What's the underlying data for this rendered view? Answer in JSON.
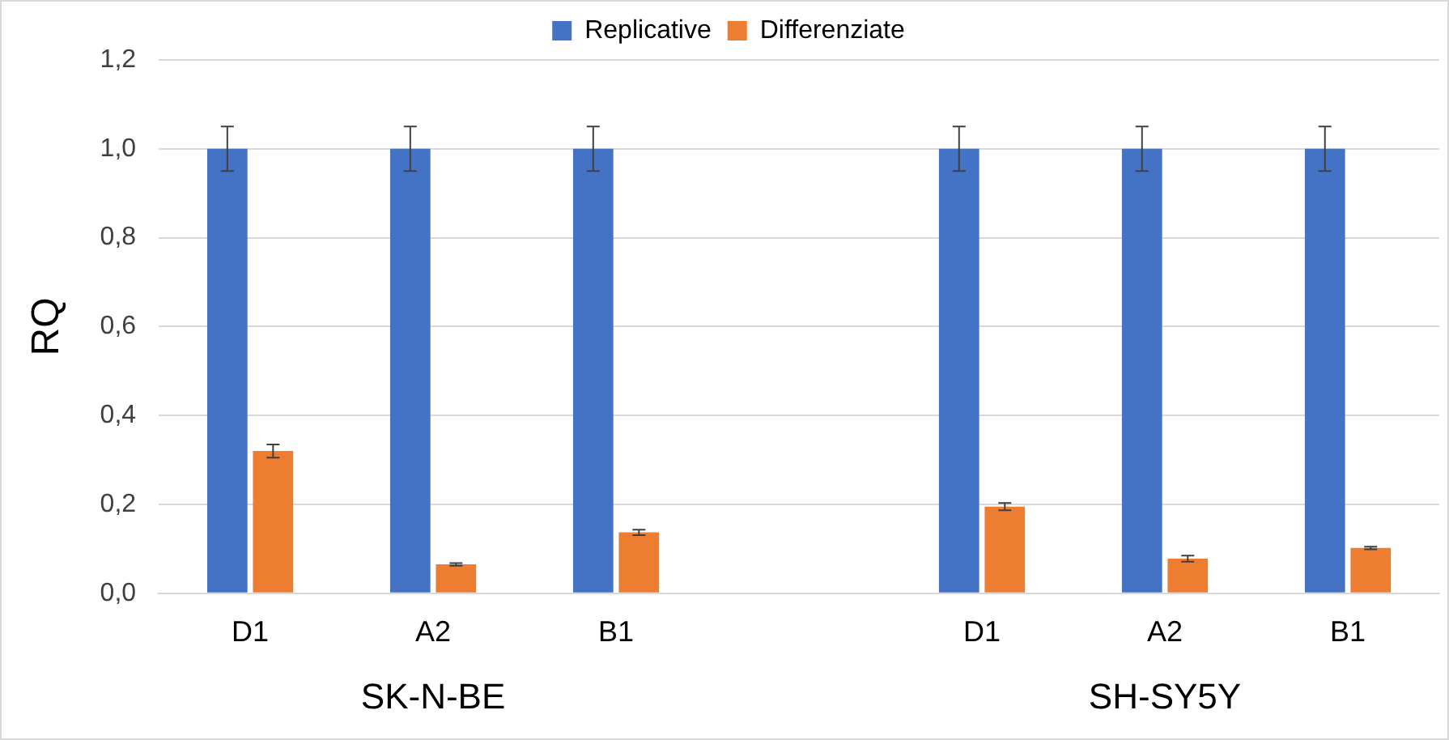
{
  "chart_data": {
    "type": "bar",
    "ylabel": "RQ",
    "categories": [
      "D1",
      "A2",
      "B1",
      null,
      "D1",
      "A2",
      "B1"
    ],
    "series": [
      {
        "name": "Replicative",
        "color": "#4472c4",
        "values": [
          1.0,
          1.0,
          1.0,
          null,
          1.0,
          1.0,
          1.0
        ],
        "errors": [
          0.05,
          0.05,
          0.05,
          null,
          0.05,
          0.05,
          0.05
        ]
      },
      {
        "name": "Differenziate",
        "color": "#ed7d31",
        "values": [
          0.32,
          0.065,
          0.137,
          null,
          0.195,
          0.078,
          0.102
        ],
        "errors": [
          0.015,
          0.003,
          0.006,
          null,
          0.008,
          0.007,
          0.003
        ]
      }
    ],
    "ylim": [
      0,
      1.2
    ],
    "yticks": [
      {
        "value": 0,
        "label": "0,0"
      },
      {
        "value": 0.2,
        "label": "0,2"
      },
      {
        "value": 0.4,
        "label": "0,4"
      },
      {
        "value": 0.6,
        "label": "0,6"
      },
      {
        "value": 0.8,
        "label": "0,8"
      },
      {
        "value": 1.0,
        "label": "1,0"
      },
      {
        "value": 1.2,
        "label": "1,2"
      }
    ],
    "annotations": [
      "SK-N-BE",
      "SH-SY5Y"
    ],
    "grid": "y",
    "legend": "top"
  }
}
